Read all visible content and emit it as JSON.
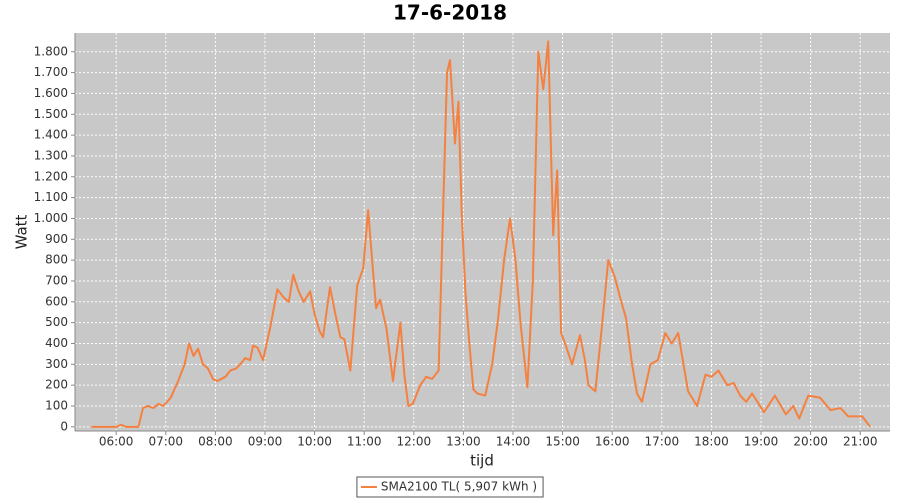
{
  "chart_data": {
    "type": "line",
    "title": "17-6-2018",
    "x_label": "tijd",
    "y_label": "Watt",
    "x": [
      5.5,
      6.0,
      6.1,
      6.2,
      6.45,
      6.54,
      6.64,
      6.75,
      6.85,
      6.95,
      7.1,
      7.25,
      7.38,
      7.47,
      7.56,
      7.65,
      7.75,
      7.85,
      7.95,
      8.04,
      8.2,
      8.3,
      8.42,
      8.5,
      8.6,
      8.7,
      8.76,
      8.85,
      8.96,
      9.1,
      9.25,
      9.38,
      9.48,
      9.57,
      9.68,
      9.78,
      9.91,
      10.0,
      10.1,
      10.17,
      10.31,
      10.42,
      10.52,
      10.6,
      10.72,
      10.86,
      10.98,
      11.08,
      11.16,
      11.24,
      11.32,
      11.45,
      11.58,
      11.73,
      11.81,
      11.89,
      11.98,
      12.13,
      12.25,
      12.37,
      12.5,
      12.67,
      12.73,
      12.83,
      12.9,
      12.97,
      13.04,
      13.12,
      13.2,
      13.28,
      13.44,
      13.58,
      13.7,
      13.82,
      13.94,
      14.05,
      14.15,
      14.29,
      14.4,
      14.51,
      14.61,
      14.71,
      14.81,
      14.89,
      14.97,
      15.05,
      15.19,
      15.35,
      15.45,
      15.52,
      15.66,
      15.8,
      15.92,
      16.05,
      16.16,
      16.28,
      16.4,
      16.5,
      16.6,
      16.77,
      16.92,
      17.07,
      17.2,
      17.33,
      17.53,
      17.71,
      17.88,
      18.0,
      18.14,
      18.32,
      18.45,
      18.58,
      18.7,
      18.82,
      19.06,
      19.28,
      19.5,
      19.65,
      19.77,
      19.95,
      20.19,
      20.4,
      20.6,
      20.76,
      21.04,
      21.2
    ],
    "series": [
      {
        "name": "SMA2100 TL( 5,907 kWh )",
        "color": "#f58140",
        "values": [
          0,
          0,
          10,
          0,
          0,
          90,
          100,
          90,
          110,
          100,
          140,
          220,
          300,
          400,
          340,
          375,
          300,
          280,
          230,
          220,
          240,
          270,
          280,
          300,
          330,
          320,
          390,
          380,
          320,
          470,
          660,
          620,
          600,
          730,
          650,
          600,
          650,
          540,
          460,
          430,
          670,
          540,
          430,
          420,
          270,
          680,
          760,
          1040,
          800,
          570,
          610,
          470,
          220,
          500,
          250,
          100,
          110,
          200,
          240,
          230,
          270,
          1700,
          1760,
          1360,
          1560,
          1000,
          650,
          400,
          180,
          160,
          150,
          300,
          520,
          800,
          1000,
          800,
          500,
          190,
          700,
          1800,
          1620,
          1850,
          920,
          1230,
          450,
          400,
          300,
          440,
          320,
          200,
          170,
          500,
          800,
          720,
          620,
          520,
          300,
          160,
          120,
          300,
          320,
          450,
          400,
          450,
          170,
          100,
          250,
          240,
          270,
          200,
          210,
          150,
          120,
          160,
          70,
          150,
          60,
          100,
          40,
          150,
          140,
          80,
          90,
          50,
          50,
          0
        ]
      }
    ],
    "xlim": [
      5.17,
      21.6
    ],
    "xticks": [
      {
        "value": 6,
        "label": "06:00"
      },
      {
        "value": 7,
        "label": "07:00"
      },
      {
        "value": 8,
        "label": "08:00"
      },
      {
        "value": 9,
        "label": "09:00"
      },
      {
        "value": 10,
        "label": "10:00"
      },
      {
        "value": 11,
        "label": "11:00"
      },
      {
        "value": 12,
        "label": "12:00"
      },
      {
        "value": 13,
        "label": "13:00"
      },
      {
        "value": 14,
        "label": "14:00"
      },
      {
        "value": 15,
        "label": "15:00"
      },
      {
        "value": 16,
        "label": "16:00"
      },
      {
        "value": 17,
        "label": "17:00"
      },
      {
        "value": 18,
        "label": "18:00"
      },
      {
        "value": 19,
        "label": "19:00"
      },
      {
        "value": 20,
        "label": "20:00"
      },
      {
        "value": 21,
        "label": "21:00"
      }
    ],
    "ylim": [
      -20,
      1890
    ],
    "yticks": [
      0,
      100,
      200,
      300,
      400,
      500,
      600,
      700,
      800,
      900,
      {
        "value": 1000,
        "label": "1.000"
      },
      {
        "value": 1100,
        "label": "1.100"
      },
      {
        "value": 1200,
        "label": "1.200"
      },
      {
        "value": 1300,
        "label": "1.300"
      },
      {
        "value": 1400,
        "label": "1.400"
      },
      {
        "value": 1500,
        "label": "1.500"
      },
      {
        "value": 1600,
        "label": "1.600"
      },
      {
        "value": 1700,
        "label": "1.700"
      },
      {
        "value": 1800,
        "label": "1.800"
      }
    ],
    "grid": true,
    "legend": "bottom"
  }
}
